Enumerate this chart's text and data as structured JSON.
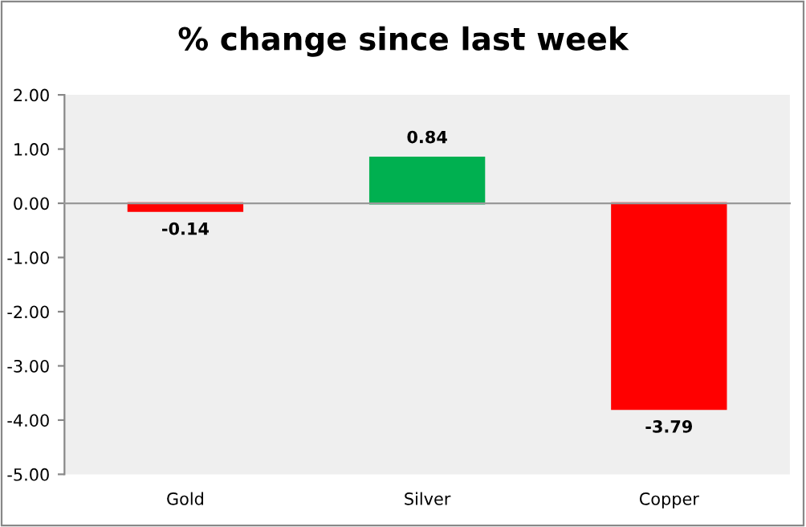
{
  "chart_data": {
    "type": "bar",
    "title": "% change since last week",
    "categories": [
      "Gold",
      "Silver",
      "Copper"
    ],
    "values": [
      -0.14,
      0.84,
      -3.79
    ],
    "colors": [
      "#ff0000",
      "#00b050",
      "#ff0000"
    ],
    "ylim": [
      -5,
      2
    ],
    "yticks": [
      {
        "value": 2,
        "label": "2.00"
      },
      {
        "value": 1,
        "label": "1.00"
      },
      {
        "value": 0,
        "label": "0.00"
      },
      {
        "value": -1,
        "label": "-1.00"
      },
      {
        "value": -2,
        "label": "-2.00"
      },
      {
        "value": -3,
        "label": "-3.00"
      },
      {
        "value": -4,
        "label": "-4.00"
      },
      {
        "value": -5,
        "label": "-5.00"
      }
    ],
    "data_labels": true,
    "legend": false
  }
}
